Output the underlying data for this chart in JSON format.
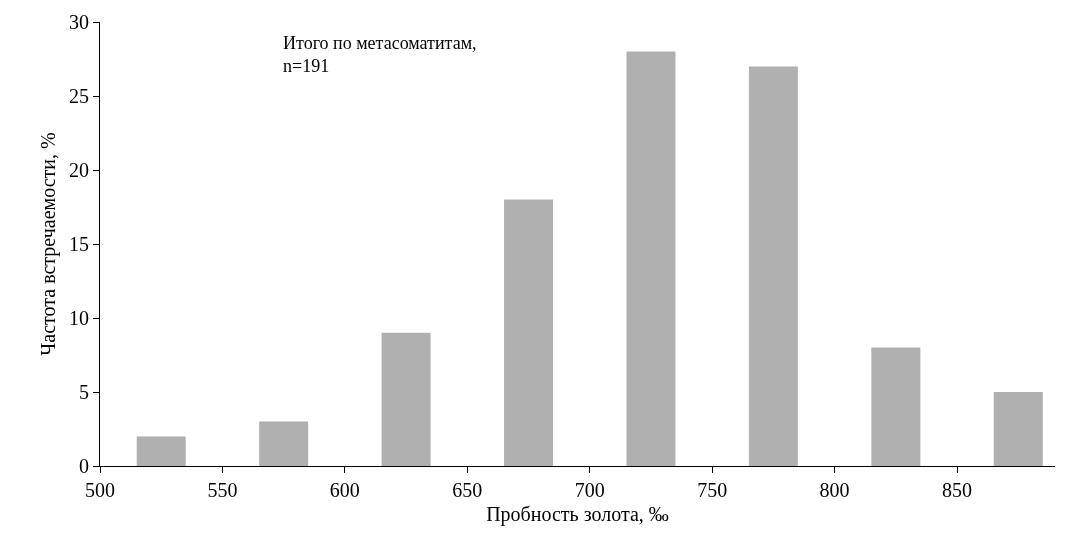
{
  "chart_data": {
    "type": "bar",
    "xlabel": "Пробность золота, ‰",
    "ylabel": "Частота встречаемости, %",
    "annotations": [
      "Итого по метасоматитам,\nn=191"
    ],
    "x": [
      525,
      575,
      625,
      675,
      725,
      775,
      825,
      875
    ],
    "values": [
      2,
      3,
      9,
      18,
      28,
      27,
      8,
      5
    ],
    "color": "#b0b0b0",
    "xlim": [
      500,
      890
    ],
    "xticks": [
      500,
      550,
      600,
      650,
      700,
      750,
      800,
      850
    ],
    "ylim": [
      0,
      30
    ],
    "yticks": [
      0,
      5,
      10,
      15,
      20,
      25,
      30
    ]
  }
}
